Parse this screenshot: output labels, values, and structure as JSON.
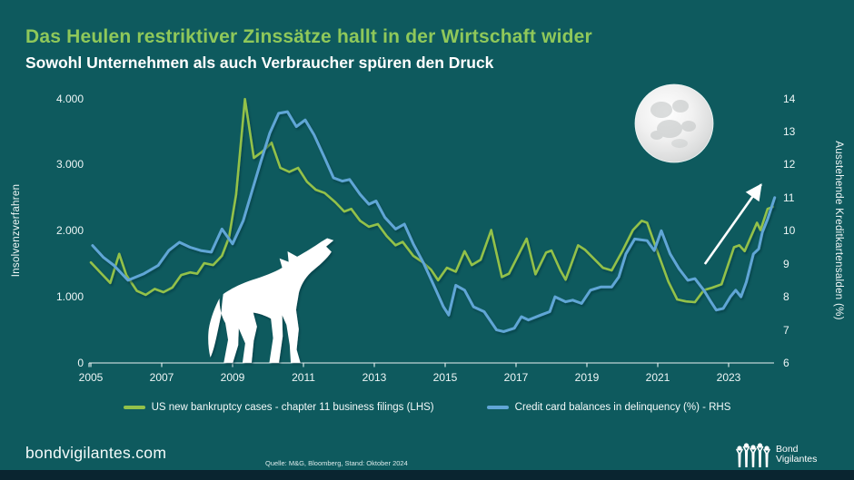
{
  "title": "Das Heulen restriktiver Zinssätze hallt in der Wirtschaft wider",
  "subtitle": "Sowohl Unternehmen als auch Verbraucher spüren den Druck",
  "colors": {
    "background": "#0e5a5e",
    "title_green": "#8fc85a",
    "line_green": "#93c14a",
    "line_blue": "#61a6d6",
    "text": "#ffffff",
    "axis": "#e9f3f3",
    "footer_strip": "#0a2530"
  },
  "decorations": {
    "moon": "full-moon-image",
    "wolf": "howling-wolf-silhouette",
    "arrow": "upward-trend-arrow"
  },
  "chart_data": {
    "type": "line",
    "grid": false,
    "legend_position": "bottom",
    "ylabel_left": "Insolvenzverfahren",
    "ylabel_right": "Ausstehende Kreditkartensalden (%)",
    "x_ticks": [
      "2005",
      "2007",
      "2009",
      "2011",
      "2013",
      "2015",
      "2017",
      "2019",
      "2021",
      "2023"
    ],
    "x_range": [
      2005,
      2024.4
    ],
    "y_left": {
      "min": 0,
      "max": 4000,
      "ticks": [
        {
          "label": "4.000",
          "value": 4000
        },
        {
          "label": "3.000",
          "value": 3000
        },
        {
          "label": "2.000",
          "value": 2000
        },
        {
          "label": "1.000",
          "value": 1000
        },
        {
          "label": "0",
          "value": 0
        }
      ]
    },
    "y_right": {
      "min": 6,
      "max": 14,
      "ticks": [
        {
          "label": "14",
          "value": 14
        },
        {
          "label": "13",
          "value": 13
        },
        {
          "label": "12",
          "value": 12
        },
        {
          "label": "11",
          "value": 11
        },
        {
          "label": "10",
          "value": 10
        },
        {
          "label": "9",
          "value": 9
        },
        {
          "label": "8",
          "value": 8
        },
        {
          "label": "7",
          "value": 7
        },
        {
          "label": "6",
          "value": 6
        }
      ]
    },
    "series": [
      {
        "name": "US new bankruptcy cases - chapter 11 business filings (LHS)",
        "axis": "left",
        "color": "#93c14a",
        "points": [
          [
            2005.0,
            1520
          ],
          [
            2005.3,
            1350
          ],
          [
            2005.55,
            1210
          ],
          [
            2005.8,
            1650
          ],
          [
            2006.0,
            1330
          ],
          [
            2006.3,
            1090
          ],
          [
            2006.55,
            1030
          ],
          [
            2006.8,
            1120
          ],
          [
            2007.05,
            1070
          ],
          [
            2007.3,
            1140
          ],
          [
            2007.55,
            1330
          ],
          [
            2007.8,
            1370
          ],
          [
            2008.0,
            1350
          ],
          [
            2008.2,
            1510
          ],
          [
            2008.45,
            1480
          ],
          [
            2008.7,
            1620
          ],
          [
            2008.9,
            1900
          ],
          [
            2009.1,
            2550
          ],
          [
            2009.35,
            3990
          ],
          [
            2009.6,
            3100
          ],
          [
            2009.85,
            3200
          ],
          [
            2010.1,
            3330
          ],
          [
            2010.35,
            2950
          ],
          [
            2010.6,
            2890
          ],
          [
            2010.85,
            2950
          ],
          [
            2011.1,
            2740
          ],
          [
            2011.35,
            2620
          ],
          [
            2011.6,
            2570
          ],
          [
            2011.9,
            2430
          ],
          [
            2012.15,
            2290
          ],
          [
            2012.35,
            2330
          ],
          [
            2012.6,
            2150
          ],
          [
            2012.85,
            2060
          ],
          [
            2013.1,
            2100
          ],
          [
            2013.35,
            1920
          ],
          [
            2013.6,
            1780
          ],
          [
            2013.8,
            1830
          ],
          [
            2014.1,
            1620
          ],
          [
            2014.35,
            1530
          ],
          [
            2014.6,
            1410
          ],
          [
            2014.8,
            1250
          ],
          [
            2015.05,
            1440
          ],
          [
            2015.3,
            1380
          ],
          [
            2015.55,
            1690
          ],
          [
            2015.75,
            1480
          ],
          [
            2016.0,
            1560
          ],
          [
            2016.3,
            2010
          ],
          [
            2016.6,
            1300
          ],
          [
            2016.8,
            1350
          ],
          [
            2017.3,
            1880
          ],
          [
            2017.55,
            1340
          ],
          [
            2017.85,
            1670
          ],
          [
            2018.0,
            1700
          ],
          [
            2018.25,
            1400
          ],
          [
            2018.4,
            1260
          ],
          [
            2018.75,
            1780
          ],
          [
            2018.95,
            1710
          ],
          [
            2019.2,
            1575
          ],
          [
            2019.45,
            1440
          ],
          [
            2019.7,
            1400
          ],
          [
            2020.0,
            1690
          ],
          [
            2020.3,
            2010
          ],
          [
            2020.55,
            2150
          ],
          [
            2020.7,
            2120
          ],
          [
            2020.95,
            1740
          ],
          [
            2021.3,
            1230
          ],
          [
            2021.55,
            960
          ],
          [
            2021.8,
            930
          ],
          [
            2022.05,
            920
          ],
          [
            2022.3,
            1100
          ],
          [
            2022.55,
            1140
          ],
          [
            2022.8,
            1190
          ],
          [
            2023.15,
            1750
          ],
          [
            2023.3,
            1780
          ],
          [
            2023.45,
            1690
          ],
          [
            2023.8,
            2120
          ],
          [
            2023.9,
            2010
          ],
          [
            2024.1,
            2330
          ],
          [
            2024.25,
            2360
          ]
        ]
      },
      {
        "name": "Credit card balances in delinquency (%) - RHS",
        "axis": "right",
        "color": "#61a6d6",
        "points": [
          [
            2005.05,
            9.55
          ],
          [
            2005.35,
            9.2
          ],
          [
            2005.65,
            8.95
          ],
          [
            2006.05,
            8.5
          ],
          [
            2006.5,
            8.7
          ],
          [
            2006.9,
            8.95
          ],
          [
            2007.2,
            9.4
          ],
          [
            2007.5,
            9.65
          ],
          [
            2007.8,
            9.5
          ],
          [
            2008.1,
            9.4
          ],
          [
            2008.4,
            9.35
          ],
          [
            2008.7,
            10.05
          ],
          [
            2009.0,
            9.6
          ],
          [
            2009.3,
            10.3
          ],
          [
            2009.55,
            11.2
          ],
          [
            2009.8,
            12.1
          ],
          [
            2010.05,
            12.95
          ],
          [
            2010.3,
            13.55
          ],
          [
            2010.55,
            13.6
          ],
          [
            2010.8,
            13.15
          ],
          [
            2011.05,
            13.35
          ],
          [
            2011.3,
            12.9
          ],
          [
            2011.6,
            12.2
          ],
          [
            2011.85,
            11.6
          ],
          [
            2012.1,
            11.5
          ],
          [
            2012.3,
            11.55
          ],
          [
            2012.6,
            11.1
          ],
          [
            2012.85,
            10.8
          ],
          [
            2013.05,
            10.9
          ],
          [
            2013.3,
            10.4
          ],
          [
            2013.6,
            10.05
          ],
          [
            2013.85,
            10.2
          ],
          [
            2014.1,
            9.6
          ],
          [
            2014.4,
            9.0
          ],
          [
            2014.7,
            8.3
          ],
          [
            2014.95,
            7.7
          ],
          [
            2015.1,
            7.45
          ],
          [
            2015.3,
            8.35
          ],
          [
            2015.55,
            8.2
          ],
          [
            2015.8,
            7.7
          ],
          [
            2016.1,
            7.55
          ],
          [
            2016.45,
            7.0
          ],
          [
            2016.65,
            6.95
          ],
          [
            2016.95,
            7.05
          ],
          [
            2017.15,
            7.4
          ],
          [
            2017.35,
            7.3
          ],
          [
            2017.7,
            7.45
          ],
          [
            2017.95,
            7.55
          ],
          [
            2018.1,
            8.0
          ],
          [
            2018.4,
            7.85
          ],
          [
            2018.6,
            7.9
          ],
          [
            2018.85,
            7.8
          ],
          [
            2019.1,
            8.2
          ],
          [
            2019.4,
            8.3
          ],
          [
            2019.7,
            8.3
          ],
          [
            2019.9,
            8.6
          ],
          [
            2020.1,
            9.3
          ],
          [
            2020.35,
            9.75
          ],
          [
            2020.7,
            9.7
          ],
          [
            2020.9,
            9.4
          ],
          [
            2021.1,
            10.0
          ],
          [
            2021.35,
            9.3
          ],
          [
            2021.6,
            8.85
          ],
          [
            2021.85,
            8.5
          ],
          [
            2022.05,
            8.55
          ],
          [
            2022.3,
            8.2
          ],
          [
            2022.5,
            7.85
          ],
          [
            2022.65,
            7.6
          ],
          [
            2022.85,
            7.65
          ],
          [
            2023.05,
            8.0
          ],
          [
            2023.2,
            8.2
          ],
          [
            2023.35,
            8.0
          ],
          [
            2023.5,
            8.45
          ],
          [
            2023.7,
            9.3
          ],
          [
            2023.85,
            9.45
          ],
          [
            2023.95,
            9.95
          ],
          [
            2024.1,
            10.35
          ],
          [
            2024.3,
            11.0
          ]
        ]
      }
    ],
    "annotations": [
      {
        "type": "arrow",
        "axis": "right",
        "from": [
          2022.33,
          8.99
        ],
        "to": [
          2023.92,
          11.4
        ],
        "color": "#ffffff"
      }
    ]
  },
  "footer": {
    "site": "bondvigilantes.com",
    "source": "Quelle: M&G, Bloomberg, Stand: Oktober 2024",
    "logo_line1": "Bond",
    "logo_line2": "Vigilantes"
  }
}
